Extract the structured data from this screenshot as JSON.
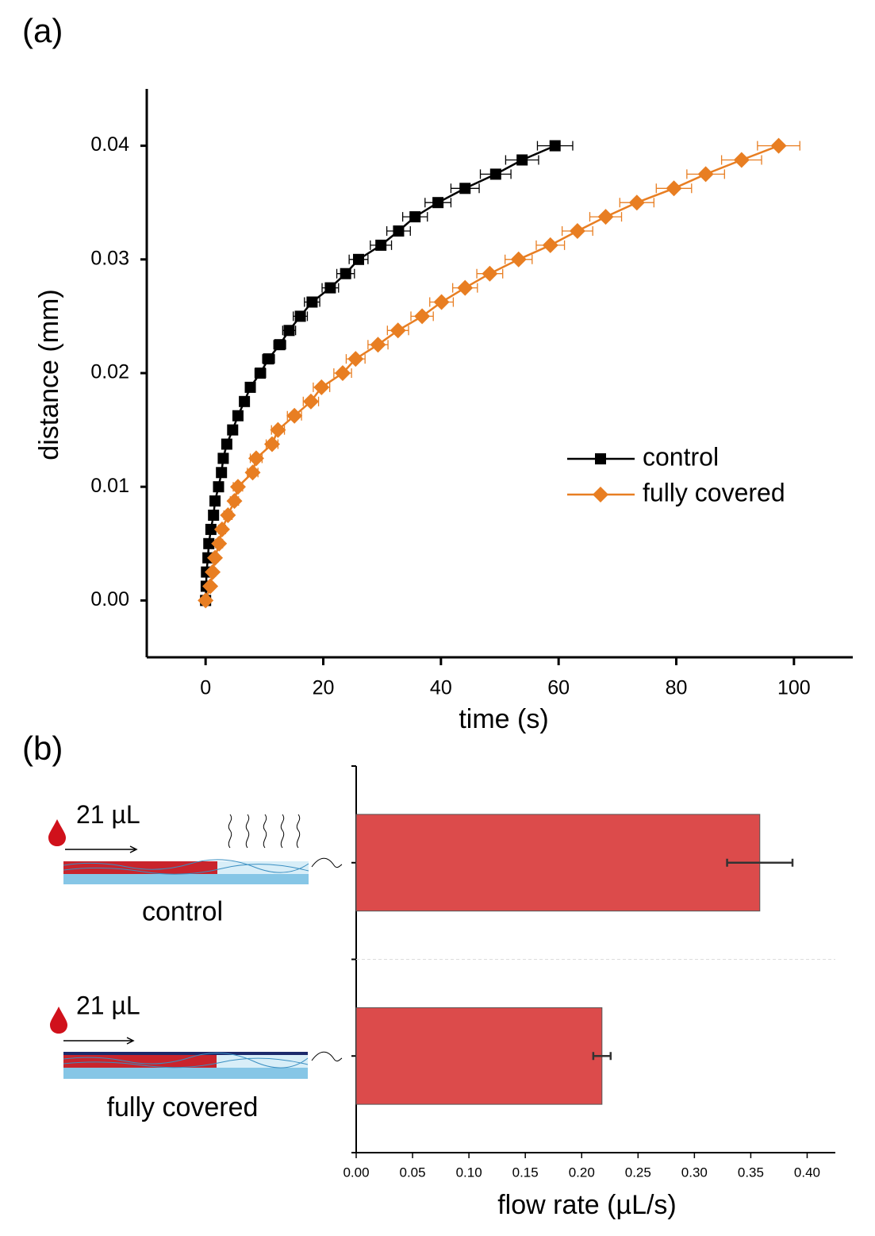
{
  "chart_data": [
    {
      "type": "line",
      "panel": "(a)",
      "xlabel": "time (s)",
      "ylabel": "distance (mm)",
      "xlim": [
        -10,
        110
      ],
      "ylim": [
        -0.005,
        0.045
      ],
      "xticks": [
        0,
        20,
        40,
        60,
        80,
        100
      ],
      "yticks": [
        {
          "value": 0,
          "label": "0.00"
        },
        {
          "value": 0.01,
          "label": "0.01"
        },
        {
          "value": 0.02,
          "label": "0.02"
        },
        {
          "value": 0.03,
          "label": "0.03"
        },
        {
          "value": 0.04,
          "label": "0.04"
        }
      ],
      "legend": "right",
      "series": [
        {
          "name": "control",
          "color": "#000000",
          "marker": "square",
          "x": [
            0,
            0.1,
            0.15,
            0.4,
            0.55,
            0.9,
            1.35,
            1.6,
            2.2,
            2.7,
            3.0,
            3.6,
            4.6,
            5.5,
            6.6,
            7.6,
            9.3,
            10.7,
            12.6,
            14.2,
            16.1,
            18.1,
            21.2,
            23.8,
            26.0,
            29.8,
            32.8,
            35.6,
            39.5,
            44.1,
            49.3,
            53.8,
            59.4
          ],
          "values": [
            0,
            0.00125,
            0.0025,
            0.00375,
            0.005,
            0.00625,
            0.0075,
            0.00875,
            0.01,
            0.01125,
            0.0125,
            0.01375,
            0.015,
            0.01625,
            0.0175,
            0.01875,
            0.02,
            0.02125,
            0.0225,
            0.02375,
            0.025,
            0.02625,
            0.0275,
            0.02875,
            0.03,
            0.03125,
            0.0325,
            0.03375,
            0.035,
            0.03625,
            0.0375,
            0.03875,
            0.04
          ],
          "xerr": [
            0.5,
            0.5,
            0.5,
            0.5,
            0.5,
            0.5,
            0.5,
            0.5,
            0.5,
            0.5,
            0.5,
            0.6,
            0.6,
            0.7,
            0.7,
            0.8,
            0.9,
            1.0,
            1.0,
            1.1,
            1.2,
            1.3,
            1.4,
            1.5,
            1.6,
            1.8,
            2.0,
            2.1,
            2.2,
            2.4,
            2.6,
            2.8,
            3.0
          ]
        },
        {
          "name": "fully covered",
          "color": "#e87e22",
          "marker": "diamond",
          "x": [
            0,
            0.8,
            1.2,
            1.6,
            2.3,
            2.8,
            3.8,
            4.9,
            5.5,
            8.0,
            8.6,
            11.3,
            12.3,
            15.1,
            17.9,
            19.7,
            23.3,
            25.5,
            29.3,
            32.7,
            36.8,
            40.1,
            44.1,
            48.3,
            53.2,
            58.6,
            63.2,
            68.0,
            73.3,
            79.6,
            85.0,
            91.1,
            97.4
          ],
          "values": [
            0,
            0.00125,
            0.0025,
            0.00375,
            0.005,
            0.00625,
            0.0075,
            0.00875,
            0.01,
            0.01125,
            0.0125,
            0.01375,
            0.015,
            0.01625,
            0.0175,
            0.01875,
            0.02,
            0.02125,
            0.0225,
            0.02375,
            0.025,
            0.02625,
            0.0275,
            0.02875,
            0.03,
            0.03125,
            0.0325,
            0.03375,
            0.035,
            0.03625,
            0.0375,
            0.03875,
            0.04
          ],
          "xerr": [
            0.5,
            0.5,
            0.5,
            0.5,
            0.6,
            0.6,
            0.7,
            0.7,
            0.8,
            0.9,
            1.0,
            1.0,
            1.1,
            1.2,
            1.3,
            1.4,
            1.5,
            1.6,
            1.7,
            1.8,
            1.9,
            2.0,
            2.1,
            2.2,
            2.3,
            2.4,
            2.6,
            2.7,
            2.9,
            3.0,
            3.2,
            3.4,
            3.6
          ]
        }
      ]
    },
    {
      "type": "hbar",
      "panel": "(b)",
      "xlabel": "flow rate (µL/s)",
      "categories": [
        "control",
        "fully covered"
      ],
      "annotations": [
        "21 µL",
        "21 µL"
      ],
      "values": [
        0.358,
        0.218
      ],
      "errors": [
        0.029,
        0.0077
      ],
      "color": "#dc4b4b",
      "xlim": [
        0,
        0.425
      ],
      "xticks": [
        {
          "value": 0,
          "label": "0.00"
        },
        {
          "value": 0.05,
          "label": "0.05"
        },
        {
          "value": 0.1,
          "label": "0.10"
        },
        {
          "value": 0.15,
          "label": "0.15"
        },
        {
          "value": 0.2,
          "label": "0.20"
        },
        {
          "value": 0.25,
          "label": "0.25"
        },
        {
          "value": 0.3,
          "label": "0.30"
        },
        {
          "value": 0.35,
          "label": "0.35"
        },
        {
          "value": 0.4,
          "label": "0.40"
        }
      ]
    }
  ]
}
